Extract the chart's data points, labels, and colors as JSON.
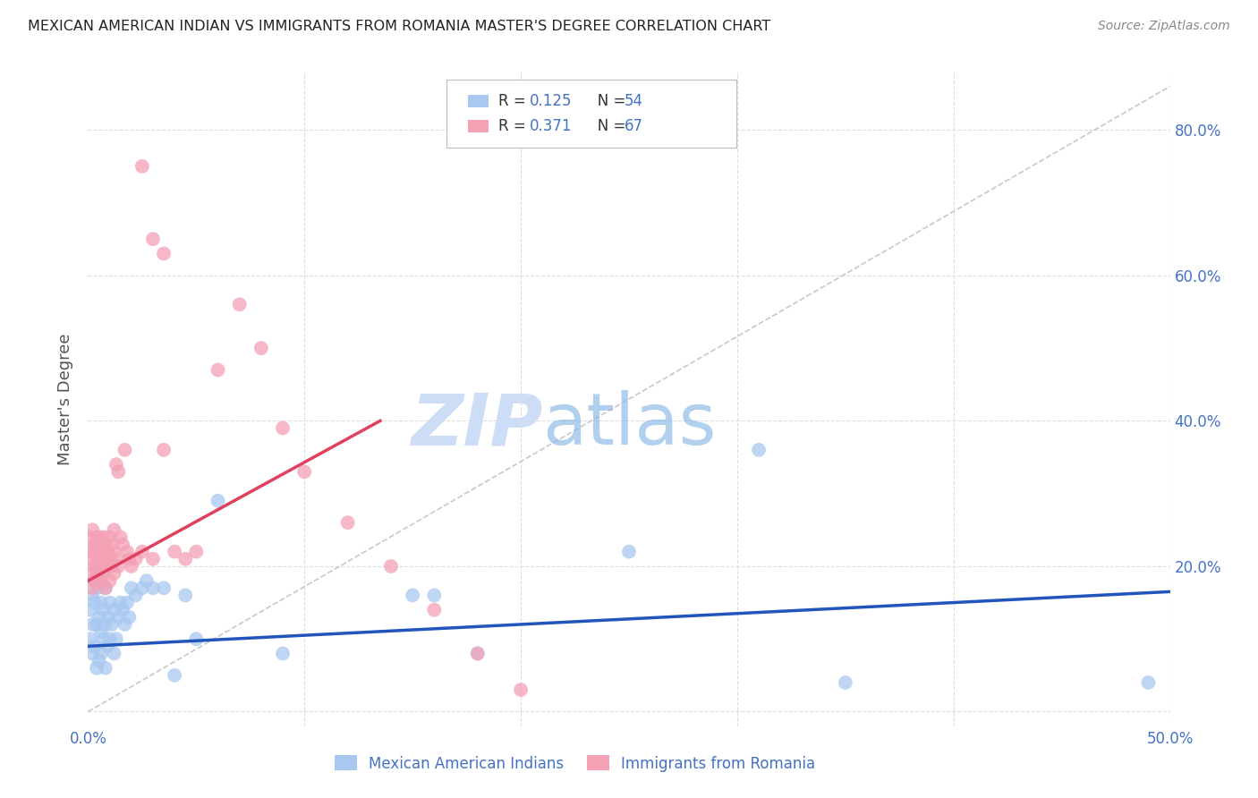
{
  "title": "MEXICAN AMERICAN INDIAN VS IMMIGRANTS FROM ROMANIA MASTER'S DEGREE CORRELATION CHART",
  "source": "Source: ZipAtlas.com",
  "ylabel": "Master's Degree",
  "watermark_zip": "ZIP",
  "watermark_atlas": "atlas",
  "xlim": [
    0.0,
    0.5
  ],
  "ylim": [
    -0.02,
    0.88
  ],
  "xtick_positions": [
    0.0,
    0.1,
    0.2,
    0.3,
    0.4,
    0.5
  ],
  "xtick_labels": [
    "0.0%",
    "",
    "",
    "",
    "",
    "50.0%"
  ],
  "ytick_positions": [
    0.0,
    0.2,
    0.4,
    0.6,
    0.8
  ],
  "ytick_labels": [
    "",
    "20.0%",
    "40.0%",
    "60.0%",
    "80.0%"
  ],
  "blue_color": "#a8c8f0",
  "pink_color": "#f4a0b5",
  "blue_line_color": "#2255bb",
  "pink_line_color": "#e04060",
  "diagonal_color": "#c8c8c8",
  "grid_color": "#dddddd",
  "title_color": "#222222",
  "source_color": "#888888",
  "tick_color": "#4472c4",
  "legend_r1": "R = 0.125",
  "legend_n1": "N = 54",
  "legend_r2": "R = 0.371",
  "legend_n2": "N = 67",
  "legend_label1": "Mexican American Indians",
  "legend_label2": "Immigrants from Romania",
  "blue_scatter_x": [
    0.001,
    0.001,
    0.002,
    0.002,
    0.002,
    0.003,
    0.003,
    0.003,
    0.004,
    0.004,
    0.004,
    0.005,
    0.005,
    0.005,
    0.006,
    0.006,
    0.006,
    0.007,
    0.007,
    0.008,
    0.008,
    0.008,
    0.009,
    0.009,
    0.01,
    0.01,
    0.011,
    0.012,
    0.012,
    0.013,
    0.014,
    0.015,
    0.016,
    0.017,
    0.018,
    0.019,
    0.02,
    0.022,
    0.025,
    0.027,
    0.03,
    0.035,
    0.04,
    0.045,
    0.05,
    0.06,
    0.09,
    0.15,
    0.16,
    0.18,
    0.25,
    0.31,
    0.35,
    0.49
  ],
  "blue_scatter_y": [
    0.14,
    0.1,
    0.16,
    0.08,
    0.12,
    0.15,
    0.09,
    0.18,
    0.12,
    0.06,
    0.17,
    0.13,
    0.07,
    0.19,
    0.11,
    0.15,
    0.08,
    0.14,
    0.1,
    0.12,
    0.06,
    0.17,
    0.13,
    0.09,
    0.15,
    0.1,
    0.12,
    0.08,
    0.14,
    0.1,
    0.13,
    0.15,
    0.14,
    0.12,
    0.15,
    0.13,
    0.17,
    0.16,
    0.17,
    0.18,
    0.17,
    0.17,
    0.05,
    0.16,
    0.1,
    0.29,
    0.08,
    0.16,
    0.16,
    0.08,
    0.22,
    0.36,
    0.04,
    0.04
  ],
  "pink_scatter_x": [
    0.001,
    0.001,
    0.001,
    0.002,
    0.002,
    0.002,
    0.003,
    0.003,
    0.003,
    0.003,
    0.004,
    0.004,
    0.004,
    0.004,
    0.005,
    0.005,
    0.005,
    0.005,
    0.006,
    0.006,
    0.006,
    0.007,
    0.007,
    0.007,
    0.008,
    0.008,
    0.008,
    0.009,
    0.009,
    0.01,
    0.01,
    0.01,
    0.011,
    0.011,
    0.012,
    0.012,
    0.012,
    0.013,
    0.013,
    0.014,
    0.014,
    0.015,
    0.016,
    0.017,
    0.018,
    0.019,
    0.02,
    0.022,
    0.025,
    0.03,
    0.035,
    0.04,
    0.045,
    0.05,
    0.06,
    0.07,
    0.08,
    0.09,
    0.1,
    0.12,
    0.14,
    0.16,
    0.18,
    0.2,
    0.025,
    0.03,
    0.035
  ],
  "pink_scatter_y": [
    0.22,
    0.19,
    0.24,
    0.21,
    0.17,
    0.25,
    0.2,
    0.23,
    0.18,
    0.22,
    0.24,
    0.2,
    0.19,
    0.23,
    0.21,
    0.18,
    0.24,
    0.22,
    0.2,
    0.23,
    0.18,
    0.22,
    0.19,
    0.24,
    0.21,
    0.17,
    0.23,
    0.2,
    0.22,
    0.18,
    0.24,
    0.21,
    0.2,
    0.23,
    0.22,
    0.19,
    0.25,
    0.21,
    0.34,
    0.2,
    0.33,
    0.24,
    0.23,
    0.36,
    0.22,
    0.21,
    0.2,
    0.21,
    0.22,
    0.21,
    0.36,
    0.22,
    0.21,
    0.22,
    0.47,
    0.56,
    0.5,
    0.39,
    0.33,
    0.26,
    0.2,
    0.14,
    0.08,
    0.03,
    0.75,
    0.65,
    0.63
  ],
  "blue_line_x": [
    0.0,
    0.5
  ],
  "blue_line_y": [
    0.09,
    0.165
  ],
  "pink_line_x": [
    0.0,
    0.135
  ],
  "pink_line_y": [
    0.18,
    0.4
  ],
  "diag_line_x": [
    0.0,
    0.5
  ],
  "diag_line_y": [
    0.0,
    0.86
  ]
}
